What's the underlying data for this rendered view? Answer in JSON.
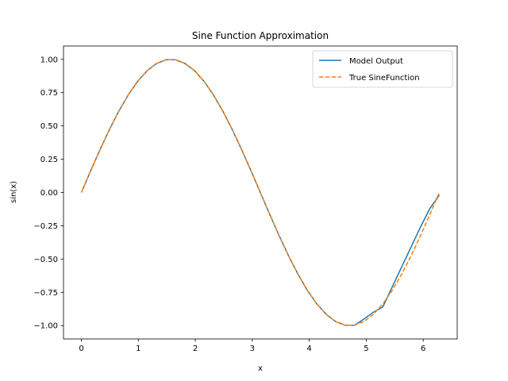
{
  "chart_data": {
    "type": "line",
    "title": "Sine Function Approximation",
    "xlabel": "x",
    "ylabel": "sin(x)",
    "xlim": [
      -0.314,
      6.597
    ],
    "ylim": [
      -1.1,
      1.1
    ],
    "xticks": [
      0,
      1,
      2,
      3,
      4,
      5,
      6
    ],
    "yticks": [
      -1.0,
      -0.75,
      -0.5,
      -0.25,
      0.0,
      0.25,
      0.5,
      0.75,
      1.0
    ],
    "ytick_labels": [
      "−1.00",
      "−0.75",
      "−0.50",
      "−0.25",
      "0.00",
      "0.25",
      "0.50",
      "0.75",
      "1.00"
    ],
    "grid": false,
    "legend": "top-right",
    "series": [
      {
        "name": "Model Output",
        "color": "#1f77b4",
        "style": "solid",
        "x": [
          0.0,
          0.165,
          0.331,
          0.496,
          0.661,
          0.827,
          0.992,
          1.157,
          1.323,
          1.488,
          1.653,
          1.819,
          1.984,
          2.149,
          2.315,
          2.48,
          2.645,
          2.811,
          2.976,
          3.141,
          3.307,
          3.472,
          3.637,
          3.803,
          3.968,
          4.133,
          4.299,
          4.464,
          4.629,
          4.795,
          4.96,
          5.125,
          5.291,
          5.456,
          5.621,
          5.787,
          5.952,
          6.117,
          6.283
        ],
        "y": [
          0.0,
          0.165,
          0.325,
          0.476,
          0.614,
          0.736,
          0.837,
          0.916,
          0.97,
          0.997,
          0.997,
          0.969,
          0.916,
          0.837,
          0.735,
          0.614,
          0.476,
          0.324,
          0.165,
          0.0,
          -0.165,
          -0.325,
          -0.476,
          -0.614,
          -0.736,
          -0.837,
          -0.916,
          -0.97,
          -0.997,
          -0.998,
          -0.95,
          -0.9,
          -0.86,
          -0.71,
          -0.56,
          -0.41,
          -0.26,
          -0.12,
          -0.02
        ]
      },
      {
        "name": "True SineFunction",
        "color": "#ff7f0e",
        "style": "dashed",
        "x": [
          0.0,
          0.165,
          0.331,
          0.496,
          0.661,
          0.827,
          0.992,
          1.157,
          1.323,
          1.488,
          1.653,
          1.819,
          1.984,
          2.149,
          2.315,
          2.48,
          2.645,
          2.811,
          2.976,
          3.141,
          3.307,
          3.472,
          3.637,
          3.803,
          3.968,
          4.133,
          4.299,
          4.464,
          4.629,
          4.795,
          4.96,
          5.125,
          5.291,
          5.456,
          5.621,
          5.787,
          5.952,
          6.117,
          6.283
        ],
        "y": [
          0.0,
          0.165,
          0.325,
          0.476,
          0.614,
          0.736,
          0.837,
          0.916,
          0.97,
          0.997,
          0.997,
          0.969,
          0.916,
          0.837,
          0.735,
          0.614,
          0.476,
          0.324,
          0.165,
          0.0,
          -0.165,
          -0.325,
          -0.476,
          -0.614,
          -0.736,
          -0.837,
          -0.916,
          -0.97,
          -0.997,
          -0.997,
          -0.969,
          -0.916,
          -0.837,
          -0.736,
          -0.614,
          -0.476,
          -0.325,
          -0.165,
          0.0
        ]
      }
    ]
  }
}
